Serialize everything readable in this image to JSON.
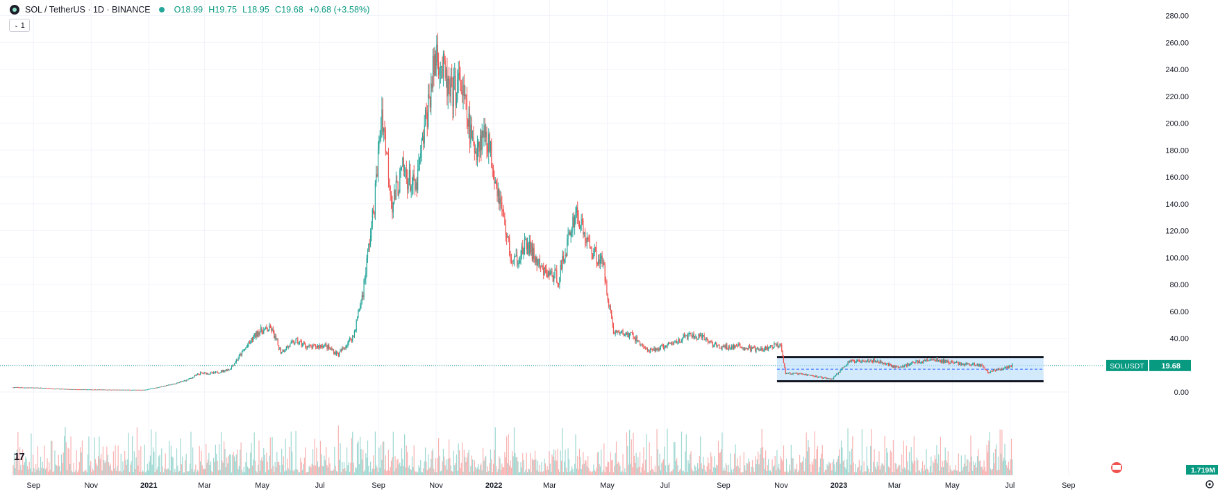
{
  "header": {
    "symbol": "SOL / TetherUS · 1D · BINANCE",
    "open": "O18.99",
    "high": "H19.75",
    "low": "L18.95",
    "close": "C19.68",
    "change": "+0.68 (+3.58%)"
  },
  "collapse_label": "1",
  "tv_logo": "17",
  "price_scale": {
    "labels": [
      "280.00",
      "260.00",
      "240.00",
      "220.00",
      "200.00",
      "180.00",
      "160.00",
      "140.00",
      "120.00",
      "100.00",
      "80.00",
      "60.00",
      "40.00",
      "0.00"
    ],
    "last_price_label": "19.68",
    "symbol_tag": "SOLUSDT",
    "volume_label": "1.719M"
  },
  "time_axis": {
    "labels": [
      "Sep",
      "Nov",
      "2021",
      "Mar",
      "May",
      "Jul",
      "Sep",
      "Nov",
      "2022",
      "Mar",
      "May",
      "Jul",
      "Sep",
      "Nov",
      "2023",
      "Mar",
      "May",
      "Jul",
      "Sep"
    ],
    "bold": [
      "2021",
      "2022",
      "2023"
    ]
  },
  "colors": {
    "up": "#26a69a",
    "down": "#ef5350",
    "grid": "#f0f3fa",
    "range_box": "#bbdefb",
    "range_border": "#131722",
    "last_price_bg": "#089981"
  },
  "icons": [
    "collapse-chevron-icon",
    "tradingview-logo-icon",
    "flag-icon",
    "settings-icon"
  ],
  "chart_data": {
    "type": "candlestick",
    "title": "SOL / TetherUS · 1D · BINANCE",
    "x_start": "2020-08",
    "x_end": "2023-09",
    "ylim": [
      -10,
      285
    ],
    "last_price": 19.68,
    "series": [
      {
        "name": "SOLUSDT",
        "points": [
          [
            "2020-08-15",
            3.5
          ],
          [
            "2020-09-15",
            3.0
          ],
          [
            "2020-10-15",
            2.0
          ],
          [
            "2020-11-15",
            1.8
          ],
          [
            "2020-12-15",
            1.6
          ],
          [
            "2021-01-01",
            1.6
          ],
          [
            "2021-01-15",
            3.5
          ],
          [
            "2021-02-01",
            6.0
          ],
          [
            "2021-02-15",
            9.0
          ],
          [
            "2021-03-01",
            14.0
          ],
          [
            "2021-03-15",
            14.0
          ],
          [
            "2021-04-01",
            17.0
          ],
          [
            "2021-04-15",
            30.0
          ],
          [
            "2021-05-01",
            45.0
          ],
          [
            "2021-05-15",
            47.0
          ],
          [
            "2021-05-25",
            30.0
          ],
          [
            "2021-06-10",
            38.0
          ],
          [
            "2021-06-25",
            33.0
          ],
          [
            "2021-07-10",
            35.0
          ],
          [
            "2021-07-25",
            28.0
          ],
          [
            "2021-08-10",
            42.0
          ],
          [
            "2021-08-20",
            75.0
          ],
          [
            "2021-09-01",
            140.0
          ],
          [
            "2021-09-09",
            210.0
          ],
          [
            "2021-09-20",
            140.0
          ],
          [
            "2021-10-01",
            165.0
          ],
          [
            "2021-10-15",
            150.0
          ],
          [
            "2021-10-25",
            200.0
          ],
          [
            "2021-11-06",
            255.0
          ],
          [
            "2021-11-20",
            220.0
          ],
          [
            "2021-12-01",
            230.0
          ],
          [
            "2021-12-15",
            180.0
          ],
          [
            "2021-12-28",
            195.0
          ],
          [
            "2022-01-10",
            150.0
          ],
          [
            "2022-01-25",
            95.0
          ],
          [
            "2022-02-10",
            110.0
          ],
          [
            "2022-02-25",
            90.0
          ],
          [
            "2022-03-15",
            85.0
          ],
          [
            "2022-04-02",
            135.0
          ],
          [
            "2022-04-15",
            110.0
          ],
          [
            "2022-05-01",
            95.0
          ],
          [
            "2022-05-12",
            45.0
          ],
          [
            "2022-06-01",
            42.0
          ],
          [
            "2022-06-18",
            30.0
          ],
          [
            "2022-07-10",
            35.0
          ],
          [
            "2022-07-30",
            42.0
          ],
          [
            "2022-08-15",
            40.0
          ],
          [
            "2022-09-01",
            33.0
          ],
          [
            "2022-09-20",
            34.0
          ],
          [
            "2022-10-15",
            31.0
          ],
          [
            "2022-11-05",
            36.0
          ],
          [
            "2022-11-10",
            14.0
          ],
          [
            "2022-12-01",
            13.0
          ],
          [
            "2022-12-29",
            9.5
          ],
          [
            "2023-01-15",
            22.0
          ],
          [
            "2023-02-01",
            24.0
          ],
          [
            "2023-02-15",
            23.0
          ],
          [
            "2023-03-10",
            18.0
          ],
          [
            "2023-03-25",
            22.0
          ],
          [
            "2023-04-15",
            24.0
          ],
          [
            "2023-05-15",
            21.0
          ],
          [
            "2023-06-05",
            20.0
          ],
          [
            "2023-06-12",
            15.0
          ],
          [
            "2023-06-25",
            17.0
          ],
          [
            "2023-07-08",
            19.68
          ]
        ]
      }
    ],
    "range_box": {
      "start": "2022-11-01",
      "end": "2023-08-10",
      "top": 26,
      "bottom": 8,
      "mid": 17
    }
  }
}
